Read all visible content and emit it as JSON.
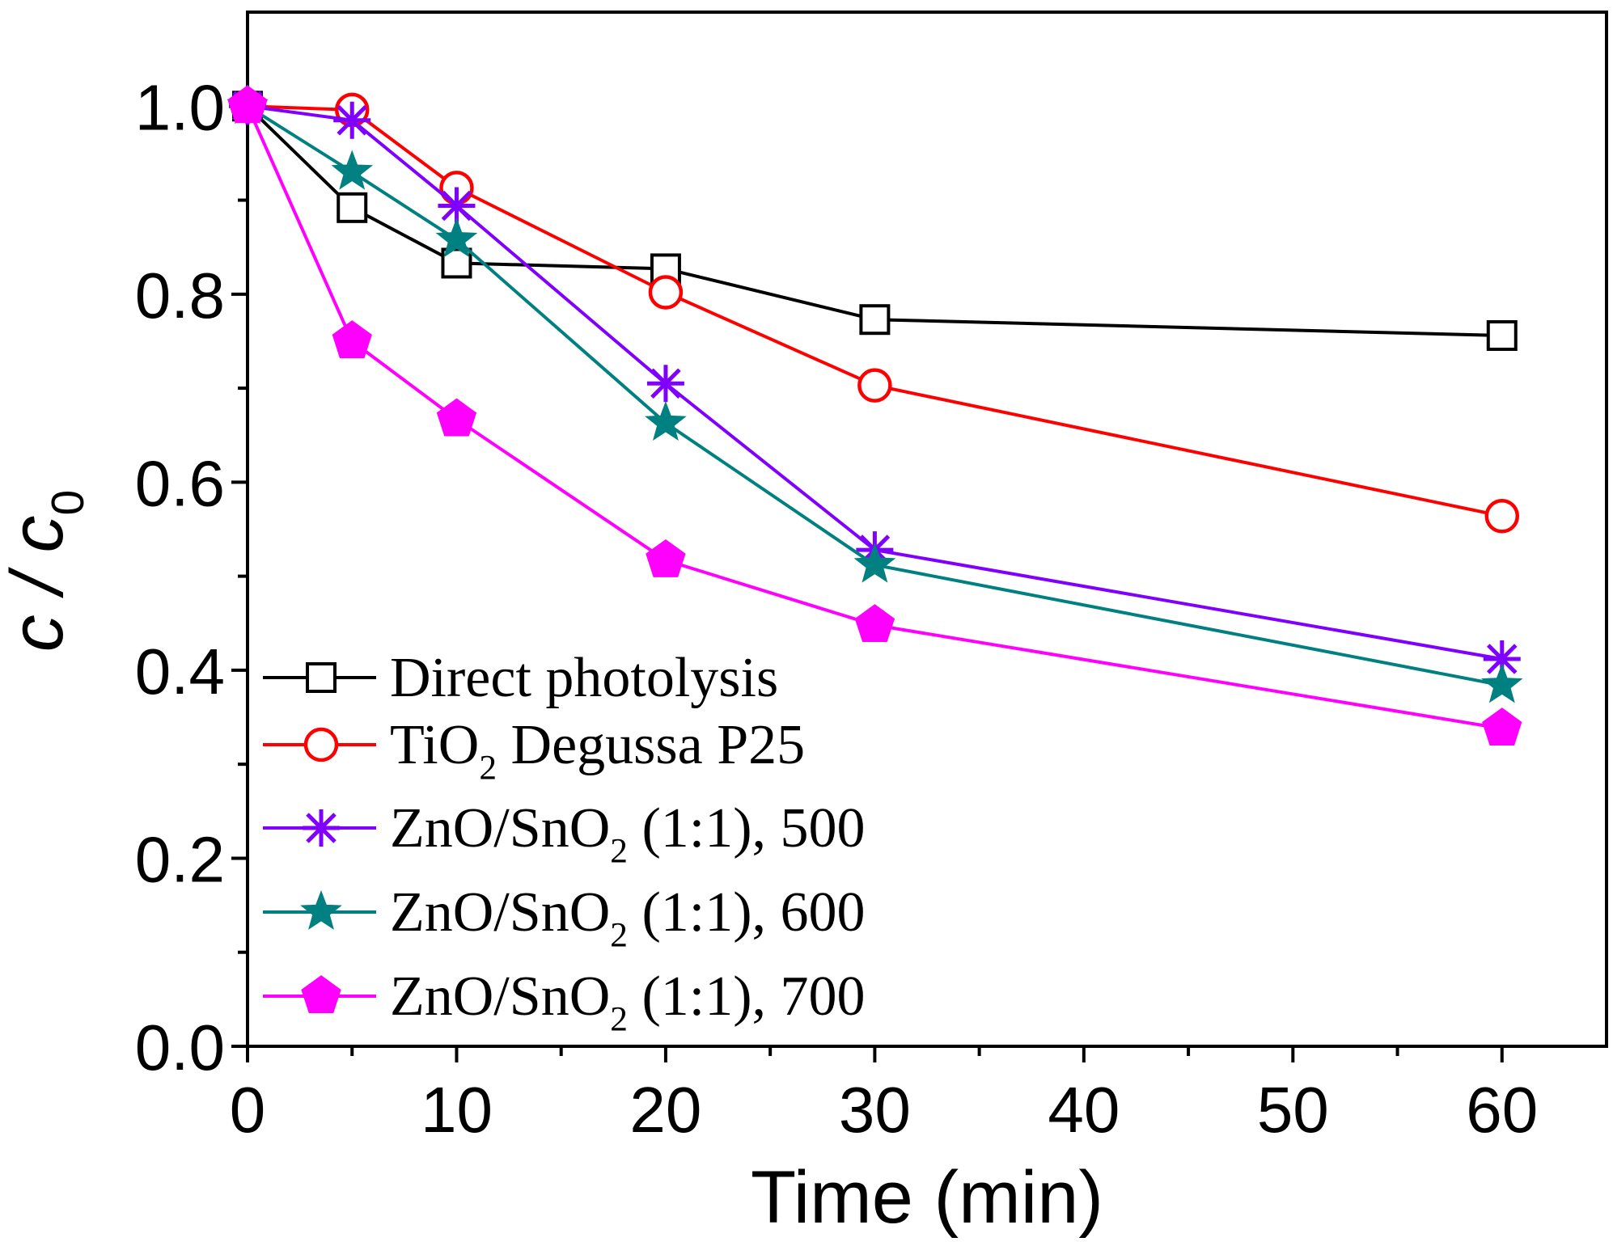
{
  "chart_data": {
    "type": "line",
    "xlabel": "Time (min)",
    "ylabel": "c / c0",
    "xlim": [
      0,
      65
    ],
    "ylim": [
      0,
      1.1
    ],
    "xticks": [
      0,
      10,
      20,
      30,
      40,
      50,
      60
    ],
    "xtick_labels": [
      "0",
      "10",
      "20",
      "30",
      "40",
      "50",
      "60"
    ],
    "yticks": [
      0,
      0.2,
      0.4,
      0.6,
      0.8,
      1.0
    ],
    "ytick_labels": [
      "0.0",
      "0.2",
      "0.4",
      "0.6",
      "0.8",
      "1.0"
    ],
    "grid": false,
    "legend": "lower-left",
    "x": [
      0,
      5,
      10,
      20,
      30,
      60
    ],
    "series": [
      {
        "name": "Direct photolysis",
        "color": "#000000",
        "marker": "open-square",
        "values": [
          1.0,
          0.892,
          0.833,
          0.827,
          0.773,
          0.756
        ]
      },
      {
        "name": "TiO2 Degussa P25",
        "color": "#FF0000",
        "marker": "open-circle",
        "values": [
          1.0,
          0.996,
          0.913,
          0.802,
          0.703,
          0.564
        ]
      },
      {
        "name": "ZnO/SnO2 (1:1), 500",
        "color": "#8000FF",
        "marker": "asterisk",
        "values": [
          1.0,
          0.985,
          0.894,
          0.705,
          0.528,
          0.412
        ]
      },
      {
        "name": "ZnO/SnO2 (1:1), 600",
        "color": "#008080",
        "marker": "filled-star",
        "values": [
          1.0,
          0.93,
          0.858,
          0.663,
          0.512,
          0.384
        ]
      },
      {
        "name": "ZnO/SnO2 (1:1), 700",
        "color": "#FF00FF",
        "marker": "filled-pentagon",
        "values": [
          1.0,
          0.75,
          0.667,
          0.517,
          0.448,
          0.338
        ]
      }
    ]
  }
}
